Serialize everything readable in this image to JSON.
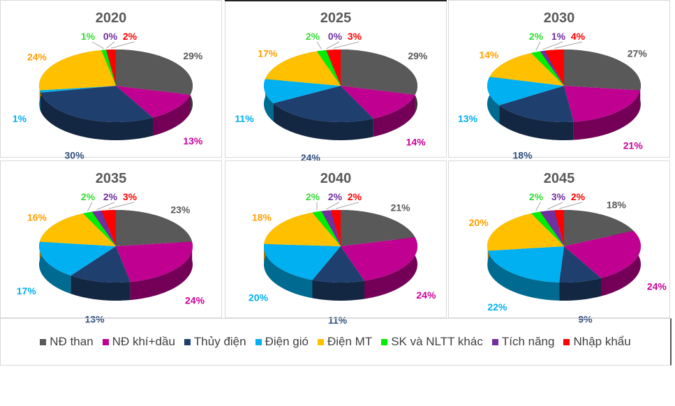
{
  "chart_data": {
    "type": "pie",
    "legend_placement": "bottom",
    "categories": [
      "NĐ than",
      "NĐ khí+dầu",
      "Thủy điện",
      "Điện gió",
      "Điện MT",
      "SK và NLTT khác",
      "Tích năng",
      "Nhập khẩu"
    ],
    "colors": [
      "#595959",
      "#c00090",
      "#1f3f6e",
      "#00b0f0",
      "#ffc000",
      "#00ee00",
      "#7030a0",
      "#ff0000"
    ],
    "label_colors": [
      "#595959",
      "#cc0099",
      "#2f4f7f",
      "#00b0f0",
      "#ffa000",
      "#33dd33",
      "#7030a0",
      "#ff0000"
    ],
    "charts": [
      {
        "title": "2020",
        "values": [
          29,
          13,
          30,
          1,
          24,
          1,
          0,
          2
        ]
      },
      {
        "title": "2025",
        "values": [
          29,
          14,
          24,
          11,
          17,
          2,
          0,
          3
        ]
      },
      {
        "title": "2030",
        "values": [
          27,
          21,
          18,
          13,
          14,
          2,
          1,
          4
        ]
      },
      {
        "title": "2035",
        "values": [
          23,
          24,
          13,
          17,
          16,
          2,
          2,
          3
        ]
      },
      {
        "title": "2040",
        "values": [
          21,
          24,
          11,
          20,
          18,
          2,
          2,
          2
        ]
      },
      {
        "title": "2045",
        "values": [
          18,
          24,
          9,
          22,
          20,
          2,
          3,
          2
        ]
      }
    ]
  }
}
